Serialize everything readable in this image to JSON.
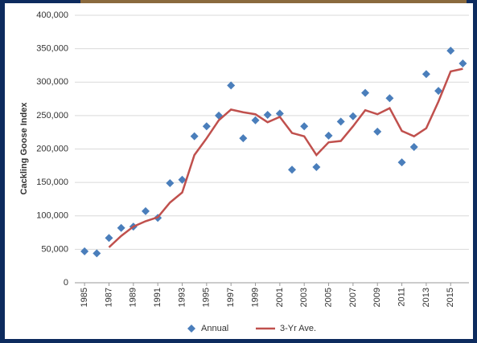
{
  "chart_data": {
    "type": "line",
    "y_label": "Cackling Goose Index",
    "x": [
      1985,
      1986,
      1987,
      1988,
      1989,
      1990,
      1991,
      1992,
      1993,
      1994,
      1995,
      1996,
      1997,
      1998,
      1999,
      2000,
      2001,
      2002,
      2003,
      2004,
      2005,
      2006,
      2007,
      2008,
      2009,
      2010,
      2011,
      2012,
      2013,
      2014,
      2015,
      2016
    ],
    "series": [
      {
        "name": "Annual",
        "style": "markers",
        "color": "#4a7ebb",
        "values": [
          47000,
          44000,
          67000,
          82000,
          84000,
          107000,
          97000,
          149000,
          154000,
          219000,
          234000,
          250000,
          295000,
          216000,
          243000,
          251000,
          253000,
          169000,
          234000,
          173000,
          220000,
          241000,
          249000,
          284000,
          226000,
          276000,
          180000,
          203000,
          312000,
          287000,
          347000,
          328000
        ]
      },
      {
        "name": "3-Yr Ave.",
        "style": "line",
        "color": "#c0504d",
        "values": [
          null,
          null,
          53000,
          70000,
          84000,
          92000,
          98000,
          120000,
          135000,
          191000,
          216000,
          243000,
          259000,
          255000,
          252000,
          240000,
          248000,
          224000,
          219000,
          191000,
          210000,
          212000,
          234000,
          258000,
          252000,
          261000,
          227000,
          219000,
          231000,
          271000,
          316000,
          320000
        ]
      }
    ],
    "xlim": [
      1984.2,
      2016.5
    ],
    "xticks": [
      1985,
      1987,
      1989,
      1991,
      1993,
      1995,
      1997,
      1999,
      2001,
      2003,
      2005,
      2007,
      2009,
      2011,
      2013,
      2015
    ],
    "ylim": [
      0,
      400000
    ],
    "yticks": [
      0,
      {
        "value": 50000,
        "label": "50,000"
      },
      {
        "value": 100000,
        "label": "100,000"
      },
      {
        "value": 150000,
        "label": "150,000"
      },
      {
        "value": 200000,
        "label": "200,000"
      },
      {
        "value": 250000,
        "label": "250,000"
      },
      {
        "value": 300000,
        "label": "300,000"
      },
      {
        "value": 350000,
        "label": "350,000"
      },
      {
        "value": 400000,
        "label": "400,000"
      }
    ],
    "grid": true,
    "legend": "bottom"
  }
}
